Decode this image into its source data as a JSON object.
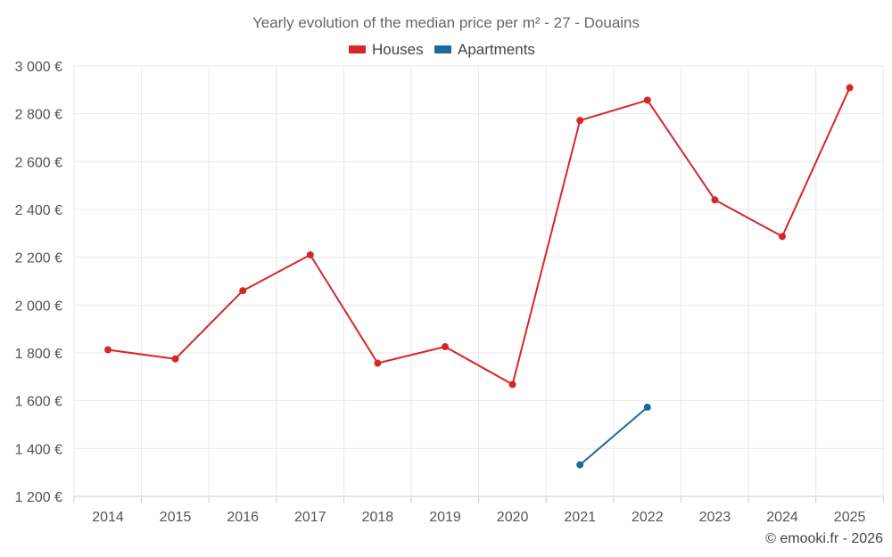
{
  "chart_data": {
    "type": "line",
    "title": "Yearly evolution of the median price per m² - 27 - Douains",
    "categories": [
      "2014",
      "2015",
      "2016",
      "2017",
      "2018",
      "2019",
      "2020",
      "2021",
      "2022",
      "2023",
      "2024",
      "2025"
    ],
    "ylim": [
      1200,
      3000
    ],
    "yticks": [
      1200,
      1400,
      1600,
      1800,
      2000,
      2200,
      2400,
      2600,
      2800,
      3000
    ],
    "ytick_labels": [
      "1 200 €",
      "1 400 €",
      "1 600 €",
      "1 800 €",
      "2 000 €",
      "2 200 €",
      "2 400 €",
      "2 600 €",
      "2 800 €",
      "3 000 €"
    ],
    "grid": true,
    "legend_position": "top-center",
    "series": [
      {
        "name": "Houses",
        "color": "#d62728",
        "values": [
          1813,
          1775,
          2060,
          2210,
          1757,
          1826,
          1668,
          2772,
          2857,
          2440,
          2287,
          2909
        ]
      },
      {
        "name": "Apartments",
        "color": "#1a6a9a",
        "values": [
          null,
          null,
          null,
          null,
          null,
          null,
          null,
          1332,
          1573,
          null,
          null,
          null
        ]
      }
    ],
    "credit": "© emooki.fr - 2026"
  }
}
